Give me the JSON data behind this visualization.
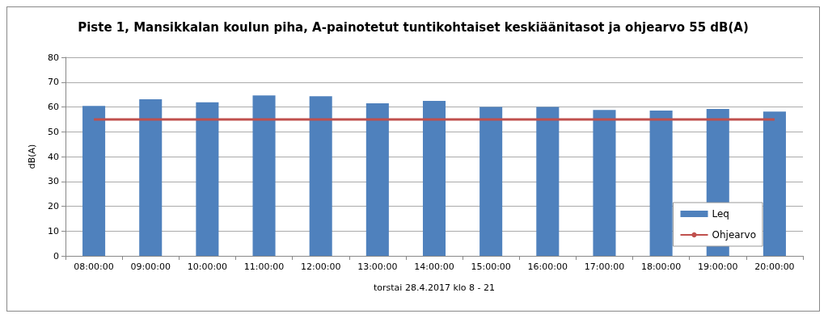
{
  "chart_data": {
    "type": "bar",
    "title": "Piste 1, Mansikkalan koulun piha, A-painotetut tuntikohtaiset keskiäänitasot ja ohjearvo 55 dB(A)",
    "xlabel": "torstai 28.4.2017 klo 8 - 21",
    "ylabel": "dB(A)",
    "categories": [
      "08:00:00",
      "09:00:00",
      "10:00:00",
      "11:00:00",
      "12:00:00",
      "13:00:00",
      "14:00:00",
      "15:00:00",
      "16:00:00",
      "17:00:00",
      "18:00:00",
      "19:00:00",
      "20:00:00"
    ],
    "series": [
      {
        "name": "Leq",
        "color": "#4f81bd",
        "values": [
          60.4,
          63.1,
          61.9,
          64.6,
          64.3,
          61.5,
          62.4,
          60.0,
          60.0,
          58.8,
          58.5,
          59.2,
          58.1
        ]
      },
      {
        "name": "Ohjearvo",
        "type": "line",
        "color": "#c0504d",
        "values": [
          55,
          55,
          55,
          55,
          55,
          55,
          55,
          55,
          55,
          55,
          55,
          55,
          55
        ]
      }
    ],
    "ylim": [
      0,
      80
    ],
    "yticks": [
      0,
      10,
      20,
      30,
      40,
      50,
      60,
      70,
      80
    ],
    "grid": "y",
    "legend": "bottom right",
    "marker": "none"
  }
}
